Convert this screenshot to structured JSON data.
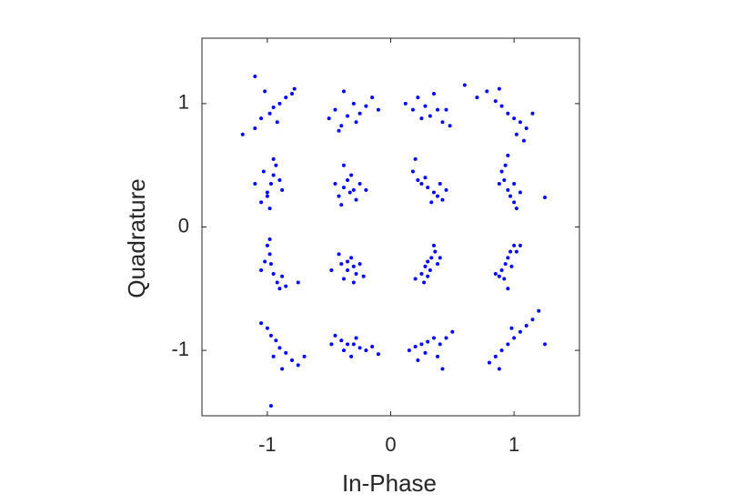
{
  "chart_data": {
    "type": "scatter",
    "xlabel": "In-Phase",
    "ylabel": "Quadrature",
    "xlim": [
      -1.53,
      1.53
    ],
    "ylim": [
      -1.53,
      1.53
    ],
    "xticks": [
      -1,
      0,
      1
    ],
    "yticks": [
      -1,
      0,
      1
    ],
    "series": [
      {
        "color": "#0000ff",
        "x": [
          -1.2,
          -1.1,
          -1.05,
          -0.98,
          -0.95,
          -0.9,
          -0.85,
          -0.8,
          -0.92,
          -1.02,
          -1.1,
          -0.78,
          -0.5,
          -0.45,
          -0.4,
          -0.35,
          -0.3,
          -0.25,
          -0.2,
          -0.15,
          -0.38,
          -0.28,
          -0.1,
          -0.42,
          0.12,
          0.18,
          0.22,
          0.28,
          0.32,
          0.38,
          0.42,
          0.48,
          0.25,
          0.35,
          0.45,
          0.6,
          0.7,
          0.78,
          0.85,
          0.9,
          0.95,
          1.0,
          1.05,
          1.1,
          1.02,
          0.88,
          1.15,
          1.08,
          -1.05,
          -1.0,
          -0.97,
          -0.95,
          -0.93,
          -0.9,
          -1.03,
          -0.98,
          -0.88,
          -1.1,
          -0.95,
          -1.0,
          -0.42,
          -0.38,
          -0.35,
          -0.3,
          -0.28,
          -0.32,
          -0.25,
          -0.4,
          -0.2,
          -0.45,
          -0.33,
          -0.38,
          0.18,
          0.22,
          0.25,
          0.3,
          0.35,
          0.38,
          0.42,
          0.28,
          0.33,
          0.45,
          0.2,
          0.4,
          0.9,
          0.92,
          0.95,
          0.97,
          1.0,
          1.02,
          0.93,
          1.05,
          0.88,
          1.0,
          0.95,
          1.25,
          -1.0,
          -0.98,
          -0.97,
          -0.95,
          -0.92,
          -0.9,
          -1.02,
          -0.88,
          -1.05,
          -0.85,
          -0.98,
          -0.75,
          -0.4,
          -0.35,
          -0.3,
          -0.28,
          -0.32,
          -0.38,
          -0.25,
          -0.42,
          -0.3,
          -0.22,
          -0.35,
          -0.48,
          0.25,
          0.28,
          0.3,
          0.33,
          0.36,
          0.38,
          0.32,
          0.27,
          0.4,
          0.3,
          0.2,
          0.35,
          0.88,
          0.9,
          0.93,
          0.95,
          0.97,
          1.0,
          0.92,
          0.98,
          1.02,
          0.85,
          1.05,
          0.95,
          -1.0,
          -0.97,
          -0.93,
          -0.9,
          -0.85,
          -0.8,
          -0.75,
          -0.95,
          -0.88,
          -1.05,
          -0.7,
          -0.97,
          -0.45,
          -0.4,
          -0.35,
          -0.3,
          -0.25,
          -0.2,
          -0.15,
          -0.38,
          -0.28,
          -0.1,
          -0.32,
          -0.48,
          0.15,
          0.2,
          0.25,
          0.3,
          0.35,
          0.4,
          0.45,
          0.5,
          0.28,
          0.38,
          0.22,
          0.42,
          0.8,
          0.85,
          0.9,
          0.95,
          1.0,
          1.05,
          1.1,
          1.15,
          0.98,
          0.88,
          1.2,
          1.25
        ],
        "values": [
          0.75,
          0.8,
          0.88,
          0.92,
          0.97,
          1.0,
          1.05,
          1.08,
          0.85,
          1.1,
          1.22,
          1.12,
          0.88,
          0.95,
          0.82,
          0.9,
          1.0,
          0.92,
          0.98,
          1.05,
          1.1,
          0.85,
          0.95,
          0.78,
          1.0,
          0.95,
          1.05,
          0.98,
          0.9,
          0.95,
          0.85,
          0.82,
          0.88,
          1.08,
          0.95,
          1.15,
          1.05,
          1.1,
          1.02,
          0.98,
          0.92,
          0.88,
          0.85,
          0.8,
          0.75,
          1.12,
          0.92,
          0.7,
          0.2,
          0.28,
          0.35,
          0.42,
          0.5,
          0.38,
          0.45,
          0.15,
          0.3,
          0.35,
          0.55,
          0.25,
          0.25,
          0.32,
          0.38,
          0.3,
          0.22,
          0.42,
          0.35,
          0.18,
          0.3,
          0.35,
          0.28,
          0.5,
          0.45,
          0.38,
          0.35,
          0.32,
          0.28,
          0.25,
          0.22,
          0.4,
          0.2,
          0.3,
          0.55,
          0.35,
          0.45,
          0.38,
          0.3,
          0.25,
          0.2,
          0.15,
          0.5,
          0.28,
          0.35,
          0.35,
          0.58,
          0.24,
          -0.15,
          -0.22,
          -0.3,
          -0.38,
          -0.45,
          -0.5,
          -0.28,
          -0.4,
          -0.35,
          -0.48,
          -0.1,
          -0.45,
          -0.3,
          -0.35,
          -0.32,
          -0.38,
          -0.25,
          -0.42,
          -0.3,
          -0.22,
          -0.45,
          -0.4,
          -0.28,
          -0.35,
          -0.38,
          -0.32,
          -0.28,
          -0.25,
          -0.2,
          -0.3,
          -0.35,
          -0.45,
          -0.25,
          -0.4,
          -0.42,
          -0.15,
          -0.4,
          -0.35,
          -0.3,
          -0.25,
          -0.2,
          -0.15,
          -0.42,
          -0.32,
          -0.2,
          -0.38,
          -0.15,
          -0.5,
          -0.82,
          -0.88,
          -0.92,
          -0.98,
          -1.02,
          -1.08,
          -1.12,
          -1.05,
          -1.15,
          -0.78,
          -1.05,
          -1.45,
          -0.88,
          -0.92,
          -0.95,
          -0.95,
          -0.98,
          -1.0,
          -0.97,
          -1.0,
          -0.9,
          -1.03,
          -1.05,
          -0.95,
          -1.0,
          -0.97,
          -0.95,
          -0.93,
          -0.9,
          -0.95,
          -0.9,
          -0.85,
          -1.02,
          -1.05,
          -1.08,
          -1.15,
          -1.1,
          -1.05,
          -1.0,
          -0.95,
          -0.9,
          -0.85,
          -0.8,
          -0.75,
          -0.82,
          -1.15,
          -0.68,
          -0.95
        ]
      }
    ]
  }
}
